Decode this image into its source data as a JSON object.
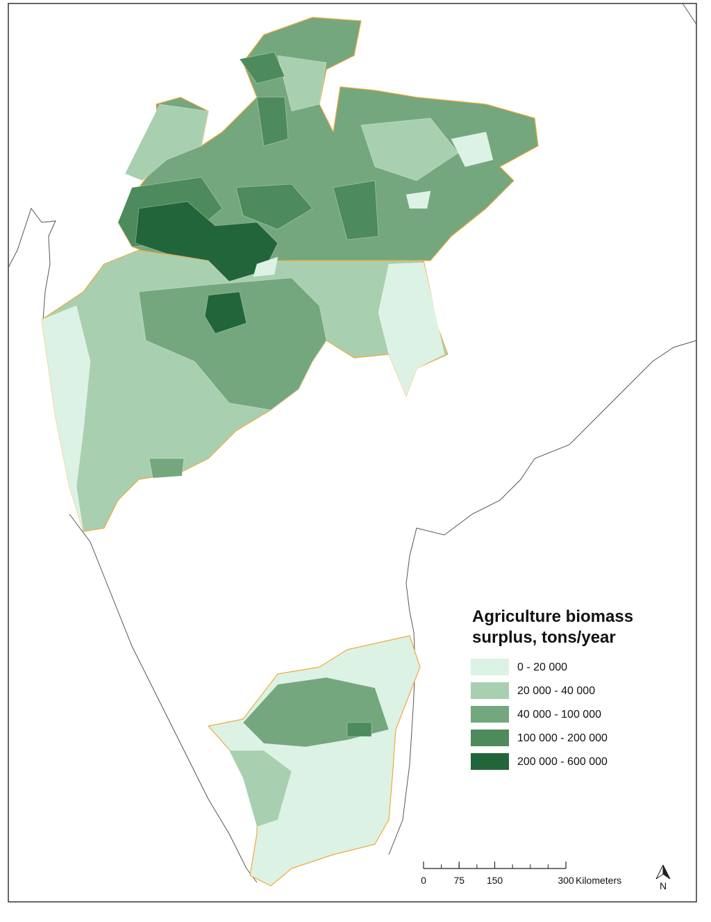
{
  "legend": {
    "title": [
      "Agriculture biomass",
      "surplus, tons/year"
    ],
    "items": [
      {
        "label": "0 - 20 000",
        "color": "#dcf2e4"
      },
      {
        "label": "20 000 - 40 000",
        "color": "#a8d0b0"
      },
      {
        "label": "40 000 - 100 000",
        "color": "#74a77e"
      },
      {
        "label": "100 000 - 200 000",
        "color": "#4d8a5c"
      },
      {
        "label": "200 000 - 600 000",
        "color": "#22653a"
      }
    ]
  },
  "scale": {
    "ticks": [
      0,
      75,
      150,
      300
    ],
    "unit": "Kilometers"
  },
  "north": "N"
}
